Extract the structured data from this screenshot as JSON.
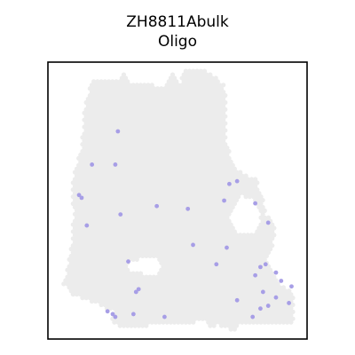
{
  "chart_data": {
    "type": "scatter",
    "title": "ZH8811Abulk",
    "subtitle": "Oligo",
    "xlim": [
      0,
      100
    ],
    "ylim": [
      0,
      100
    ],
    "background_color": "#ececec",
    "highlight_color": "#a79ee6",
    "background_series": {
      "description": "tissue spots (grey)",
      "shape_polygon": [
        [
          16,
          91
        ],
        [
          17,
          93
        ],
        [
          26,
          93
        ],
        [
          29,
          96
        ],
        [
          32,
          93
        ],
        [
          45,
          91
        ],
        [
          48,
          96
        ],
        [
          51,
          92
        ],
        [
          52,
          95
        ],
        [
          53,
          98
        ],
        [
          60,
          98
        ],
        [
          63,
          96
        ],
        [
          64,
          95
        ],
        [
          68,
          92
        ],
        [
          69,
          87
        ],
        [
          69,
          70
        ],
        [
          73,
          61
        ],
        [
          80,
          58
        ],
        [
          83,
          52
        ],
        [
          84,
          45
        ],
        [
          87,
          42
        ],
        [
          88,
          38
        ],
        [
          86,
          32
        ],
        [
          85,
          29
        ],
        [
          87,
          23
        ],
        [
          90,
          20
        ],
        [
          93,
          18
        ],
        [
          95,
          14
        ],
        [
          95,
          5
        ],
        [
          88,
          5
        ],
        [
          82,
          6
        ],
        [
          79,
          5
        ],
        [
          74,
          5
        ],
        [
          72,
          3
        ],
        [
          66,
          5
        ],
        [
          62,
          4
        ],
        [
          60,
          7
        ],
        [
          56,
          6
        ],
        [
          52,
          6
        ],
        [
          49,
          5
        ],
        [
          40,
          5
        ],
        [
          35,
          4
        ],
        [
          24,
          5
        ],
        [
          25,
          10
        ],
        [
          15,
          14
        ],
        [
          9,
          16
        ],
        [
          6,
          20
        ],
        [
          8,
          28
        ],
        [
          9,
          35
        ],
        [
          10,
          45
        ],
        [
          9,
          52
        ],
        [
          10,
          60
        ],
        [
          13,
          70
        ],
        [
          14,
          82
        ],
        [
          16,
          91
        ]
      ],
      "holes": [
        {
          "polygon": [
            [
              32,
              28
            ],
            [
              40,
              30
            ],
            [
              44,
              27
            ],
            [
              42,
              23
            ],
            [
              35,
              24
            ],
            [
              31,
              25
            ]
          ]
        },
        {
          "polygon": [
            [
              70,
              45
            ],
            [
              74,
              52
            ],
            [
              80,
              50
            ],
            [
              82,
              44
            ],
            [
              80,
              38
            ],
            [
              73,
              38
            ]
          ]
        }
      ]
    },
    "highlight_points": {
      "x": [
        27,
        17,
        26,
        13,
        12,
        15,
        28,
        42,
        54,
        56,
        70,
        68,
        73,
        80,
        85,
        84,
        65,
        69,
        83,
        88,
        80,
        82,
        90,
        94,
        88,
        93,
        34,
        35,
        31,
        23,
        25,
        26,
        33,
        45,
        73,
        79,
        85,
        82
      ],
      "y": [
        75,
        63,
        63,
        51,
        52,
        41,
        45,
        48,
        47,
        34,
        56,
        50,
        57,
        49,
        42,
        27,
        27,
        33,
        17,
        15,
        23,
        26,
        21,
        19,
        24,
        13,
        17,
        18,
        28,
        10,
        9,
        8,
        9,
        8,
        14,
        8,
        12,
        11
      ]
    }
  }
}
